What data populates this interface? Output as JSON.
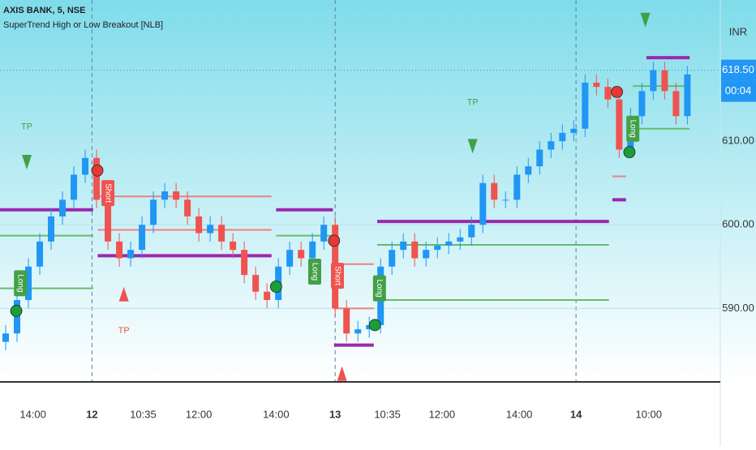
{
  "chart_data": {
    "type": "candlestick",
    "title": "AXIS BANK, 5, NSE",
    "subtitle": "SuperTrend High or Low Breakout [NLB]",
    "currency": "INR",
    "last_price": {
      "value": 618.5,
      "label": "618.50"
    },
    "countdown": "00:04",
    "up_color": "#2196f3",
    "down_color": "#ef5350",
    "xlim": [
      -0.5,
      62.9
    ],
    "xticks": [
      {
        "value": 2.4,
        "label": "14:00"
      },
      {
        "value": 7.6,
        "label": "12"
      },
      {
        "value": 12.1,
        "label": "10:35"
      },
      {
        "value": 17,
        "label": "12:00"
      },
      {
        "value": 23.8,
        "label": "14:00"
      },
      {
        "value": 29,
        "label": "13"
      },
      {
        "value": 33.6,
        "label": "10:35"
      },
      {
        "value": 38.4,
        "label": "12:00"
      },
      {
        "value": 45.2,
        "label": "14:00"
      },
      {
        "value": 50.2,
        "label": "14"
      },
      {
        "value": 56.6,
        "label": "10:00"
      }
    ],
    "ylim": [
      581.3,
      626.9
    ],
    "yticks": [
      {
        "value": 590,
        "label": "590.00"
      },
      {
        "value": 600,
        "label": "600.00"
      },
      {
        "value": 610,
        "label": "610.00"
      }
    ],
    "open": [
      586,
      587,
      591,
      595,
      598,
      601,
      603,
      606,
      608,
      603,
      598,
      596,
      597,
      600,
      603,
      604,
      603,
      601,
      599,
      600,
      598,
      597,
      594,
      592,
      591,
      595,
      597,
      596,
      598,
      600,
      590,
      587,
      587.5,
      588,
      595,
      597,
      598,
      596,
      597,
      597.5,
      598,
      598.5,
      600,
      605,
      603,
      603,
      606,
      607,
      609,
      610,
      611,
      611.5,
      617,
      616.5,
      615,
      609,
      613,
      616,
      618.5,
      616,
      613
    ],
    "high": [
      588,
      592,
      596,
      599,
      602,
      604,
      607,
      609,
      609,
      604,
      599,
      598,
      601,
      604,
      605,
      605,
      604,
      602,
      601,
      601,
      599,
      598,
      595,
      593,
      596,
      598,
      598,
      599,
      601,
      601,
      591,
      588.5,
      589,
      596,
      598,
      599,
      599,
      598,
      598.5,
      599,
      599.5,
      601,
      606,
      606,
      604,
      607,
      608,
      610,
      611,
      612,
      612.5,
      618,
      618,
      617.5,
      616,
      614,
      617,
      619.5,
      619.5,
      617,
      619
    ],
    "low": [
      585,
      586,
      590,
      594,
      597,
      600,
      602,
      605,
      602,
      597,
      595,
      595,
      596,
      599,
      602,
      602,
      600,
      598,
      598,
      597,
      596,
      593,
      591,
      590,
      590,
      594,
      595,
      595,
      597,
      589,
      586,
      586,
      586.5,
      587,
      594,
      596,
      595,
      595,
      596,
      596.5,
      597,
      597.5,
      599,
      602,
      602,
      602,
      605,
      606,
      608,
      609,
      610,
      610.5,
      615.5,
      614,
      608,
      608,
      612,
      615,
      615,
      612,
      612
    ],
    "close": [
      587,
      591,
      595,
      598,
      601,
      603,
      606,
      608,
      603,
      598,
      596,
      597,
      600,
      603,
      604,
      603,
      601,
      599,
      600,
      598,
      597,
      594,
      592,
      591,
      595,
      597,
      596,
      598,
      600,
      590,
      587,
      587.5,
      588,
      595,
      597,
      598,
      596,
      597,
      597.5,
      598,
      598.5,
      600,
      605,
      603,
      603,
      606,
      607,
      609,
      610,
      611,
      611.5,
      617,
      616.5,
      615,
      609,
      613,
      616,
      618.5,
      616,
      613,
      618
    ],
    "levels": [
      {
        "x": [
          -0.5,
          7.7
        ],
        "y": 601.8,
        "color": "#9c27b0"
      },
      {
        "x": [
          8.1,
          23.4
        ],
        "y": 596.3,
        "color": "#9c27b0"
      },
      {
        "x": [
          23.8,
          28.8
        ],
        "y": 601.8,
        "color": "#9c27b0"
      },
      {
        "x": [
          28.9,
          32.4
        ],
        "y": 585.6,
        "color": "#9c27b0"
      },
      {
        "x": [
          32.7,
          53.1
        ],
        "y": 600.4,
        "color": "#9c27b0"
      },
      {
        "x": [
          53.4,
          54.6
        ],
        "y": 603,
        "color": "#9c27b0"
      },
      {
        "x": [
          56.4,
          60.2
        ],
        "y": 620,
        "color": "#9c27b0"
      },
      {
        "x": [
          -0.5,
          7.7
        ],
        "y": 598.7,
        "color": "#66bb6a"
      },
      {
        "x": [
          -0.5,
          7.7
        ],
        "y": 592.4,
        "color": "#66bb6a"
      },
      {
        "x": [
          23.8,
          28.8
        ],
        "y": 598.7,
        "color": "#66bb6a"
      },
      {
        "x": [
          32.7,
          53.1
        ],
        "y": 597.6,
        "color": "#66bb6a"
      },
      {
        "x": [
          32.7,
          53.1
        ],
        "y": 591,
        "color": "#66bb6a"
      },
      {
        "x": [
          55.2,
          60.2
        ],
        "y": 611.5,
        "color": "#66bb6a"
      },
      {
        "x": [
          55.2,
          60.2
        ],
        "y": 616.6,
        "color": "#66bb6a"
      },
      {
        "x": [
          8.1,
          23.4
        ],
        "y": 603.4,
        "color": "#f08080"
      },
      {
        "x": [
          8.1,
          23.4
        ],
        "y": 599.4,
        "color": "#f08080"
      },
      {
        "x": [
          28.9,
          32.4
        ],
        "y": 595.3,
        "color": "#f08080"
      },
      {
        "x": [
          28.9,
          32.4
        ],
        "y": 590,
        "color": "#f08080"
      },
      {
        "x": [
          53.4,
          54.6
        ],
        "y": 605.8,
        "color": "#f08080"
      }
    ],
    "signals": [
      {
        "label": "Long",
        "x": 1.3,
        "y": 593,
        "color": "#43a047"
      },
      {
        "label": "Long",
        "x": 27.2,
        "y": 594.4,
        "color": "#43a047"
      },
      {
        "label": "Long",
        "x": 32.9,
        "y": 592.4,
        "color": "#43a047"
      },
      {
        "label": "Long",
        "x": 55.2,
        "y": 611.5,
        "color": "#43a047"
      },
      {
        "label": "Short",
        "x": 9,
        "y": 603.8,
        "color": "#ef5350"
      },
      {
        "label": "Short",
        "x": 29.2,
        "y": 593.9,
        "color": "#ef5350"
      }
    ],
    "tp_labels": [
      {
        "label": "TP",
        "x": 1.86,
        "y": 611.7,
        "color": "#43a047"
      },
      {
        "label": "TP",
        "x": 10.4,
        "y": 587.3,
        "color": "#ef5350"
      },
      {
        "label": "TP",
        "x": 41.1,
        "y": 614.6,
        "color": "#43a047"
      }
    ],
    "markers": [
      {
        "shape": "down",
        "x": 1.86,
        "y": 607.5,
        "color": "#43a047"
      },
      {
        "shape": "up",
        "x": 10.4,
        "y": 591.7,
        "color": "#ef5350"
      },
      {
        "shape": "down",
        "x": 41.1,
        "y": 609.4,
        "color": "#43a047"
      },
      {
        "shape": "up",
        "x": 29.6,
        "y": 582.2,
        "color": "#ef5350"
      },
      {
        "shape": "down",
        "x": 56.3,
        "y": 624.5,
        "color": "#43a047"
      },
      {
        "shape": "circle",
        "x": 0.93,
        "y": 589.7,
        "color": "#1b9e3a"
      },
      {
        "shape": "circle",
        "x": 23.8,
        "y": 592.6,
        "color": "#1b9e3a"
      },
      {
        "shape": "circle",
        "x": 32.5,
        "y": 588,
        "color": "#1b9e3a"
      },
      {
        "shape": "circle",
        "x": 54.9,
        "y": 608.7,
        "color": "#1b9e3a"
      },
      {
        "shape": "circle",
        "x": 8.07,
        "y": 606.5,
        "color": "#e53935"
      },
      {
        "shape": "circle",
        "x": 28.9,
        "y": 598.1,
        "color": "#e53935"
      },
      {
        "shape": "circle",
        "x": 53.8,
        "y": 615.9,
        "color": "#e53935"
      }
    ]
  }
}
